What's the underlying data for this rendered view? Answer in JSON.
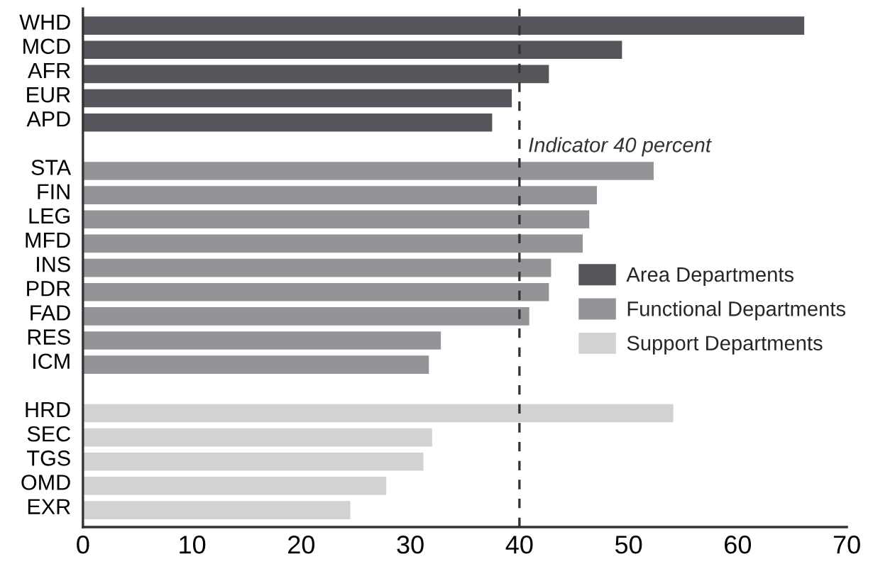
{
  "chart_data": {
    "type": "bar",
    "orientation": "horizontal",
    "categories": [
      "WHD",
      "MCD",
      "AFR",
      "EUR",
      "APD",
      null,
      "STA",
      "FIN",
      "LEG",
      "MFD",
      "INS",
      "PDR",
      "FAD",
      "RES",
      "ICM",
      null,
      "HRD",
      "SEC",
      "TGS",
      "OMD",
      "EXR"
    ],
    "series": [
      {
        "name": "Area Departments",
        "color": "#55565b",
        "values": [
          66.1,
          49.4,
          42.7,
          39.3,
          37.5,
          null,
          null,
          null,
          null,
          null,
          null,
          null,
          null,
          null,
          null,
          null,
          null,
          null,
          null,
          null,
          null
        ]
      },
      {
        "name": "Functional Departments",
        "color": "#939498",
        "values": [
          null,
          null,
          null,
          null,
          null,
          null,
          52.3,
          47.1,
          46.4,
          45.8,
          42.9,
          42.7,
          40.9,
          32.8,
          31.7,
          null,
          null,
          null,
          null,
          null,
          null
        ]
      },
      {
        "name": "Support Departments",
        "color": "#d1d2d4",
        "values": [
          null,
          null,
          null,
          null,
          null,
          null,
          null,
          null,
          null,
          null,
          null,
          null,
          null,
          null,
          null,
          null,
          54.1,
          32.0,
          31.2,
          27.8,
          24.5
        ]
      }
    ],
    "xlim": [
      0,
      70
    ],
    "xticks": [
      0,
      10,
      20,
      30,
      40,
      50,
      60,
      70
    ],
    "ref_lines": [
      {
        "axis": "x",
        "value": 40,
        "label": "Indicator 40 percent",
        "color": "#333333",
        "line_style": "dashed"
      }
    ],
    "legend": "right",
    "grid": false
  }
}
